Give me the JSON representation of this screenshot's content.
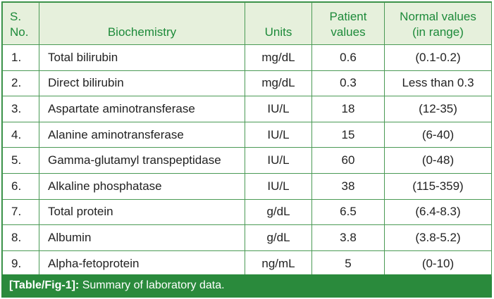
{
  "table": {
    "headers": {
      "sno": [
        "S.",
        "No."
      ],
      "biochemistry": "Biochemistry",
      "units": "Units",
      "patient": [
        "Patient",
        "values"
      ],
      "normal": [
        "Normal values",
        "(in range)"
      ]
    },
    "rows": [
      {
        "sno": "1.",
        "name": "Total bilirubin",
        "unit": "mg/dL",
        "value": "0.6",
        "range": "(0.1-0.2)"
      },
      {
        "sno": "2.",
        "name": "Direct bilirubin",
        "unit": "mg/dL",
        "value": "0.3",
        "range": "Less than 0.3"
      },
      {
        "sno": "3.",
        "name": "Aspartate aminotransferase",
        "unit": "IU/L",
        "value": "18",
        "range": "(12-35)"
      },
      {
        "sno": "4.",
        "name": "Alanine aminotransferase",
        "unit": "IU/L",
        "value": "15",
        "range": "(6-40)"
      },
      {
        "sno": "5.",
        "name": "Gamma-glutamyl transpeptidase",
        "unit": "IU/L",
        "value": "60",
        "range": "(0-48)"
      },
      {
        "sno": "6.",
        "name": "Alkaline phosphatase",
        "unit": "IU/L",
        "value": "38",
        "range": "(115-359)"
      },
      {
        "sno": "7.",
        "name": "Total protein",
        "unit": "g/dL",
        "value": "6.5",
        "range": "(6.4-8.3)"
      },
      {
        "sno": "8.",
        "name": "Albumin",
        "unit": "g/dL",
        "value": "3.8",
        "range": "(3.8-5.2)"
      },
      {
        "sno": "9.",
        "name": "Alpha-fetoprotein",
        "unit": "ng/mL",
        "value": "5",
        "range": "(0-10)"
      }
    ]
  },
  "caption": {
    "label": "[Table/Fig-1]:",
    "text": " Summary of laboratory data."
  },
  "colors": {
    "accent": "#2a8a3c",
    "header_bg": "#e6f0dc",
    "header_text": "#1d8a3a"
  }
}
